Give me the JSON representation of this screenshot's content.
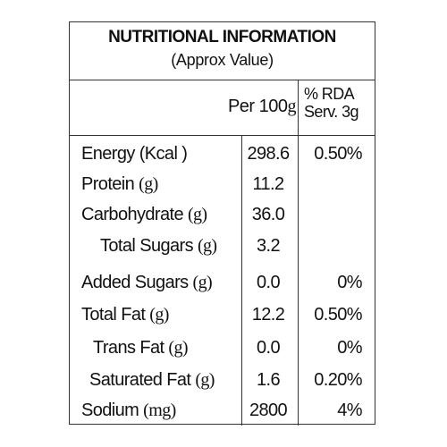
{
  "header": {
    "title": "NUTRITIONAL INFORMATION",
    "subtitle": "(Approx Value)"
  },
  "columns": {
    "per_label": "Per 100",
    "per_unit": "g",
    "rda_line1": "% RDA",
    "rda_line2": "Serv. 3g"
  },
  "rows": [
    {
      "name": "Energy (Kcal )",
      "unit": "",
      "value": "298.6",
      "rda": "0.50%"
    },
    {
      "name": "Protein ",
      "unit": "(g)",
      "value": "11.2",
      "rda": ""
    },
    {
      "name": "Carbohydrate ",
      "unit": "(g)",
      "value": "36.0",
      "rda": ""
    },
    {
      "name": "Total Sugars ",
      "unit": "(g)",
      "value": "3.2",
      "rda": ""
    },
    {
      "name": "Added Sugars ",
      "unit": "(g)",
      "value": "0.0",
      "rda": "0%"
    },
    {
      "name": "Total Fat ",
      "unit": "(g)",
      "value": "12.2",
      "rda": "0.50%"
    },
    {
      "name": "Trans Fat ",
      "unit": "(g)",
      "value": "0.0",
      "rda": "0%"
    },
    {
      "name": "Saturated Fat ",
      "unit": "(g)",
      "value": "1.6",
      "rda": "0.20%"
    },
    {
      "name": "Sodium ",
      "unit": "(mg)",
      "value": "2800",
      "rda": "4%"
    }
  ]
}
